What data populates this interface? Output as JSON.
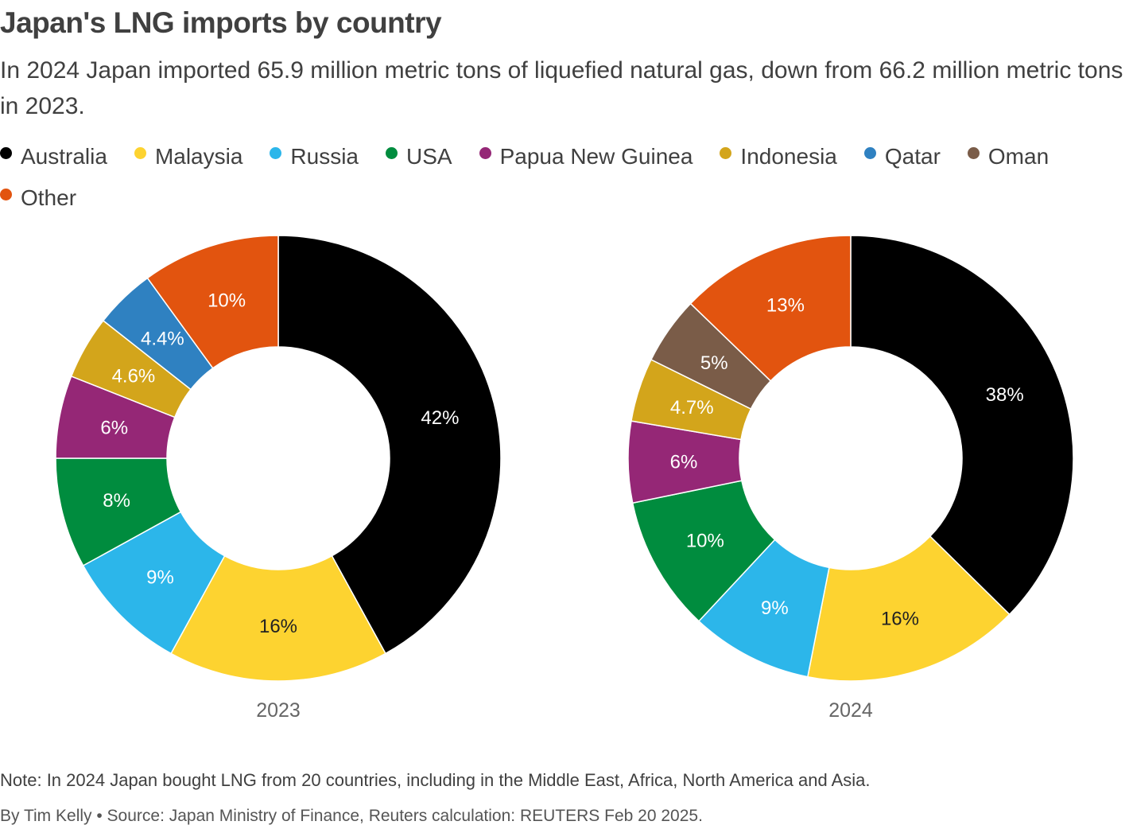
{
  "title": "Japan's LNG imports by country",
  "subtitle": "In 2024 Japan imported 65.9 million metric tons of liquefied natural gas, down from 66.2 million metric tons in 2023.",
  "legend": [
    {
      "name": "Australia",
      "color": "#000000"
    },
    {
      "name": "Malaysia",
      "color": "#fdd330"
    },
    {
      "name": "Russia",
      "color": "#2cb6ea"
    },
    {
      "name": "USA",
      "color": "#008c3e"
    },
    {
      "name": "Papua New Guinea",
      "color": "#952776"
    },
    {
      "name": "Indonesia",
      "color": "#d3a51b"
    },
    {
      "name": "Qatar",
      "color": "#2f81c1"
    },
    {
      "name": "Oman",
      "color": "#7a5c48"
    },
    {
      "name": "Other",
      "color": "#e2540f"
    }
  ],
  "chart_data": [
    {
      "type": "pie",
      "style": "donut",
      "label": "2023",
      "slices": [
        {
          "name": "Australia",
          "value": 42,
          "label": "42%"
        },
        {
          "name": "Malaysia",
          "value": 16,
          "label": "16%"
        },
        {
          "name": "Russia",
          "value": 9,
          "label": "9%"
        },
        {
          "name": "USA",
          "value": 8,
          "label": "8%"
        },
        {
          "name": "Papua New Guinea",
          "value": 6,
          "label": "6%"
        },
        {
          "name": "Indonesia",
          "value": 4.6,
          "label": "4.6%"
        },
        {
          "name": "Qatar",
          "value": 4.4,
          "label": "4.4%"
        },
        {
          "name": "Other",
          "value": 10,
          "label": "10%"
        }
      ]
    },
    {
      "type": "pie",
      "style": "donut",
      "label": "2024",
      "slices": [
        {
          "name": "Australia",
          "value": 38,
          "label": "38%"
        },
        {
          "name": "Malaysia",
          "value": 16,
          "label": "16%"
        },
        {
          "name": "Russia",
          "value": 9,
          "label": "9%"
        },
        {
          "name": "USA",
          "value": 10,
          "label": "10%"
        },
        {
          "name": "Papua New Guinea",
          "value": 6,
          "label": "6%"
        },
        {
          "name": "Indonesia",
          "value": 4.7,
          "label": "4.7%"
        },
        {
          "name": "Oman",
          "value": 5,
          "label": "5%"
        },
        {
          "name": "Other",
          "value": 13,
          "label": "13%"
        }
      ]
    }
  ],
  "footer": {
    "note": "Note: In 2024 Japan bought LNG from 20 countries, including in the Middle East, Africa, North America and Asia.",
    "byline": "By Tim Kelly • Source: Japan Ministry of Finance, Reuters calculation: REUTERS Feb 20 2025."
  }
}
